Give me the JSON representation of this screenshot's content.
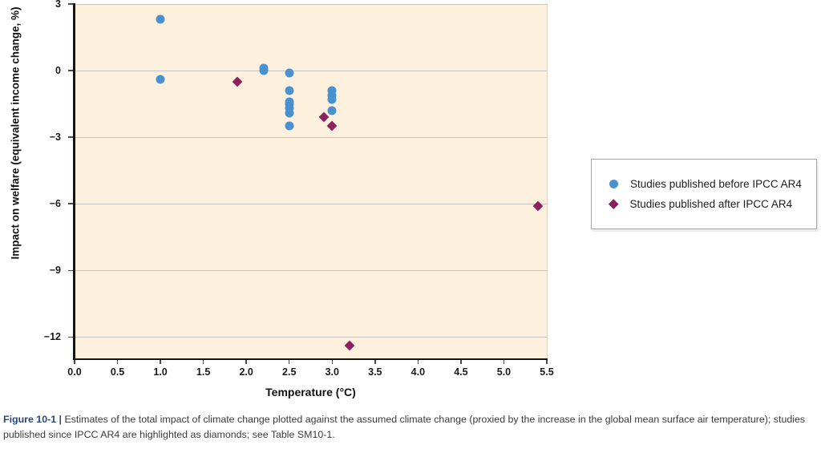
{
  "figure": {
    "caption_lead": "Figure 10-1 |",
    "caption_text": "Estimates of the total impact of climate change plotted against the assumed climate change (proxied by the increase in the global mean surface air temperature); studies published since IPCC AR4 are highlighted as diamonds; see Table SM10-1."
  },
  "legend": {
    "items": [
      {
        "label": "Studies published before IPCC AR4",
        "marker": "circle",
        "color": "#4a91d0"
      },
      {
        "label": "Studies published after IPCC AR4",
        "marker": "diamond",
        "color": "#8c2160"
      }
    ]
  },
  "chart_data": {
    "type": "scatter",
    "title": "",
    "xlabel": "Temperature (°C)",
    "ylabel": "Impact on welfare (equivalent income change, %)",
    "xlim": [
      0,
      5.5
    ],
    "ylim": [
      -13,
      3
    ],
    "grid": "horizontal",
    "legend_position": "right-outside",
    "plot_bg": "#fdf1de",
    "gridline_color": "#c6c4be",
    "xticks": [
      {
        "label": "0.0",
        "value": 0.0
      },
      {
        "label": "0.5",
        "value": 0.5
      },
      {
        "label": "1.0",
        "value": 1.0
      },
      {
        "label": "1.5",
        "value": 1.5
      },
      {
        "label": "2.0",
        "value": 2.0
      },
      {
        "label": "2.5",
        "value": 2.5
      },
      {
        "label": "3.0",
        "value": 3.0
      },
      {
        "label": "3.5",
        "value": 3.5
      },
      {
        "label": "4.0",
        "value": 4.0
      },
      {
        "label": "4.5",
        "value": 4.5
      },
      {
        "label": "5.0",
        "value": 5.0
      },
      {
        "label": "5.5",
        "value": 5.5
      }
    ],
    "yticks": [
      {
        "label": "3",
        "value": 3
      },
      {
        "label": "0",
        "value": 0
      },
      {
        "label": "−3",
        "value": -3
      },
      {
        "label": "−6",
        "value": -6
      },
      {
        "label": "−9",
        "value": -9
      },
      {
        "label": "−12",
        "value": -12
      }
    ],
    "gridlines": [
      3,
      0,
      -3,
      -6,
      -9,
      -12
    ],
    "series": [
      {
        "name": "Studies published before IPCC AR4",
        "marker": "circle",
        "color": "#4a91d0",
        "points": [
          [
            1.0,
            2.3
          ],
          [
            1.0,
            -0.4
          ],
          [
            2.2,
            0.0
          ],
          [
            2.2,
            0.1
          ],
          [
            2.5,
            -2.5
          ],
          [
            2.5,
            -1.9
          ],
          [
            2.5,
            -1.7
          ],
          [
            2.5,
            -1.5
          ],
          [
            2.5,
            -1.4
          ],
          [
            2.5,
            -0.9
          ],
          [
            2.5,
            -0.1
          ],
          [
            3.0,
            -1.8
          ],
          [
            3.0,
            -0.9
          ],
          [
            3.0,
            -1.3
          ],
          [
            3.0,
            -1.1
          ]
        ]
      },
      {
        "name": "Studies published after IPCC AR4",
        "marker": "diamond",
        "color": "#8c2160",
        "points": [
          [
            1.9,
            -0.5
          ],
          [
            2.9,
            -2.1
          ],
          [
            3.0,
            -2.5
          ],
          [
            3.2,
            -12.4
          ],
          [
            5.4,
            -6.1
          ]
        ]
      }
    ]
  }
}
